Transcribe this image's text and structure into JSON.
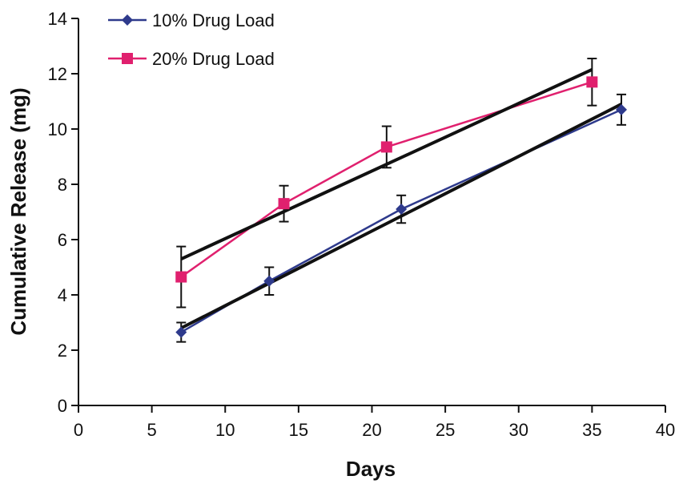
{
  "chart_data": {
    "type": "line",
    "title": "",
    "xlabel": "Days",
    "ylabel": "Cumulative Release (mg)",
    "xlim": [
      0,
      40
    ],
    "ylim": [
      0,
      14
    ],
    "x_ticks": [
      0,
      5,
      10,
      15,
      20,
      25,
      30,
      35,
      40
    ],
    "y_ticks": [
      0,
      2,
      4,
      6,
      8,
      10,
      12,
      14
    ],
    "grid": false,
    "legend_position": "top-left",
    "series": [
      {
        "name": "10% Drug Load",
        "color": "#2e3a8c",
        "marker": "diamond",
        "points": [
          {
            "x": 7,
            "y": 2.65,
            "err": 0.35
          },
          {
            "x": 13,
            "y": 4.5,
            "err": 0.5
          },
          {
            "x": 22,
            "y": 7.1,
            "err": 0.5
          },
          {
            "x": 37,
            "y": 10.7,
            "err": 0.55
          }
        ]
      },
      {
        "name": "20% Drug Load",
        "color": "#e0206e",
        "marker": "square",
        "points": [
          {
            "x": 7,
            "y": 4.65,
            "err": 1.1
          },
          {
            "x": 14,
            "y": 7.3,
            "err": 0.65
          },
          {
            "x": 21,
            "y": 9.35,
            "err": 0.75
          },
          {
            "x": 35,
            "y": 11.7,
            "err": 0.85
          }
        ]
      }
    ],
    "trendlines": [
      {
        "color": "#111111",
        "x": [
          7,
          37
        ],
        "y": [
          2.8,
          10.9
        ]
      },
      {
        "color": "#111111",
        "x": [
          7,
          35
        ],
        "y": [
          5.3,
          12.15
        ]
      }
    ]
  }
}
